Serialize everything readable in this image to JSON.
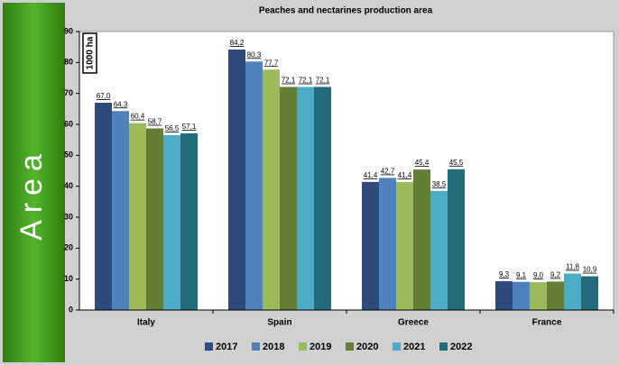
{
  "chart_data": {
    "type": "bar",
    "title": "Peaches and nectarines production area",
    "ylabel": "Area",
    "annotation": "1000 ha",
    "categories": [
      "Italy",
      "Spain",
      "Greece",
      "France"
    ],
    "series": [
      {
        "name": "2017",
        "color": "#2f4b7c",
        "values": [
          67.0,
          84.2,
          41.4,
          9.3
        ],
        "value_labels": [
          "67,0",
          "84,2",
          "41,4",
          "9,3"
        ]
      },
      {
        "name": "2018",
        "color": "#4f81bd",
        "values": [
          64.3,
          80.3,
          42.7,
          9.1
        ],
        "value_labels": [
          "64,3",
          "80,3",
          "42,7",
          "9,1"
        ]
      },
      {
        "name": "2019",
        "color": "#9bbb59",
        "values": [
          60.4,
          77.7,
          41.4,
          9.0
        ],
        "value_labels": [
          "60,4",
          "77,7",
          "41,4",
          "9,0"
        ]
      },
      {
        "name": "2020",
        "color": "#647f35",
        "values": [
          58.7,
          72.1,
          45.4,
          9.2
        ],
        "value_labels": [
          "58,7",
          "72,1",
          "45,4",
          "9,2"
        ]
      },
      {
        "name": "2021",
        "color": "#4bacc6",
        "values": [
          56.5,
          72.1,
          38.5,
          11.8
        ],
        "value_labels": [
          "56,5",
          "72,1",
          "38,5",
          "11,8"
        ]
      },
      {
        "name": "2022",
        "color": "#226b7a",
        "values": [
          57.1,
          72.1,
          45.5,
          10.9
        ],
        "value_labels": [
          "57,1",
          "72,1",
          "45,5",
          "10,9"
        ]
      }
    ],
    "ylim": [
      0,
      90
    ],
    "yticks": [
      0,
      10,
      20,
      30,
      40,
      50,
      60,
      70,
      80,
      90
    ],
    "legend": "bottom"
  }
}
